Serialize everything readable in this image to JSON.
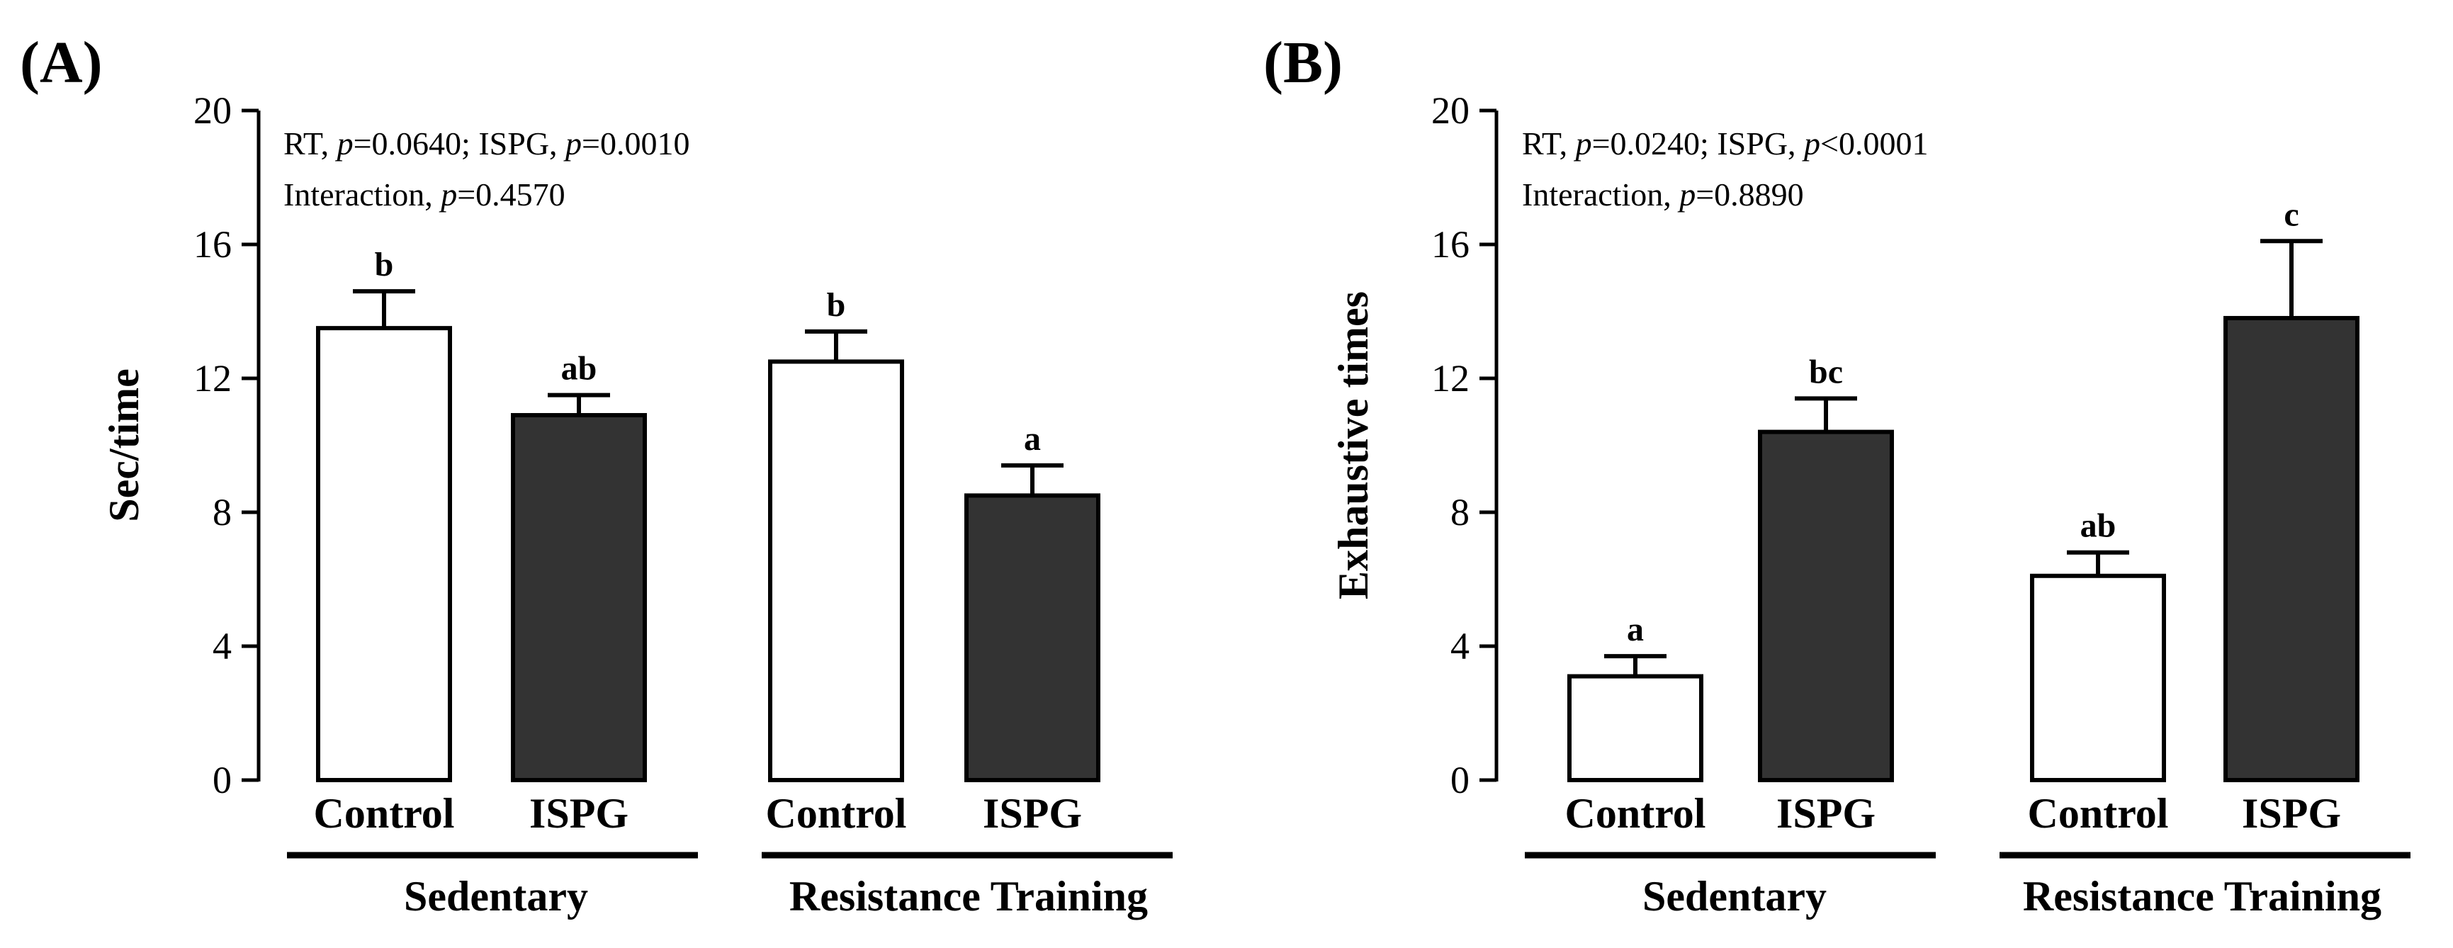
{
  "chart_data": [
    {
      "type": "bar",
      "panel": "(A)",
      "ylabel": "Sec/time",
      "ylim": [
        0,
        20
      ],
      "yticks": [
        "0",
        "4",
        "8",
        "12",
        "16",
        "20"
      ],
      "stats": {
        "line1": {
          "a": "RT, ",
          "b": "p",
          "c": "=0.0640; ISPG, ",
          "d": "p",
          "e": "=0.0010"
        },
        "line2": {
          "a": "Interaction, ",
          "b": "p",
          "c": "=0.4570"
        }
      },
      "groups": [
        "Sedentary",
        "Resistance Training"
      ],
      "categories": [
        "Control",
        "ISPG",
        "Control",
        "ISPG"
      ],
      "values": [
        13.5,
        10.9,
        12.5,
        8.5
      ],
      "errors": [
        1.1,
        0.6,
        0.9,
        0.9
      ],
      "fills": [
        "#ffffff",
        "#333333",
        "#ffffff",
        "#333333"
      ],
      "sig_labels": [
        "b",
        "ab",
        "b",
        "a"
      ]
    },
    {
      "type": "bar",
      "panel": "(B)",
      "ylabel": "Exhaustive times",
      "ylim": [
        0,
        20
      ],
      "yticks": [
        "0",
        "4",
        "8",
        "12",
        "16",
        "20"
      ],
      "stats": {
        "line1": {
          "a": "RT, ",
          "b": "p",
          "c": "=0.0240; ISPG, ",
          "d": "p",
          "e": "<0.0001"
        },
        "line2": {
          "a": "Interaction, ",
          "b": "p",
          "c": "=0.8890"
        }
      },
      "groups": [
        "Sedentary",
        "Resistance Training"
      ],
      "categories": [
        "Control",
        "ISPG",
        "Control",
        "ISPG"
      ],
      "values": [
        3.1,
        10.4,
        6.1,
        13.8
      ],
      "errors": [
        0.6,
        1.0,
        0.7,
        2.3
      ],
      "fills": [
        "#ffffff",
        "#333333",
        "#ffffff",
        "#333333"
      ],
      "sig_labels": [
        "a",
        "bc",
        "ab",
        "c"
      ]
    }
  ]
}
